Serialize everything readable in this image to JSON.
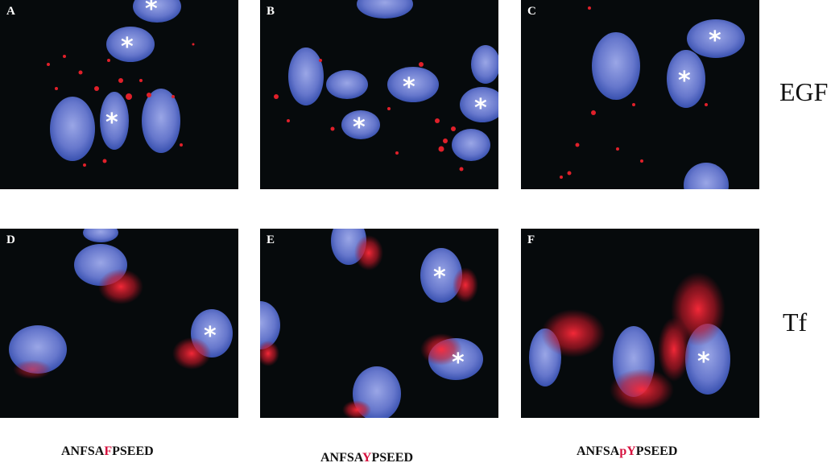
{
  "panels": [
    {
      "label": "A"
    },
    {
      "label": "B"
    },
    {
      "label": "C"
    },
    {
      "label": "D"
    },
    {
      "label": "E"
    },
    {
      "label": "F"
    }
  ],
  "rows": [
    {
      "label": "EGF"
    },
    {
      "label": "Tf"
    }
  ],
  "sequences": [
    {
      "pre": "ANFSA",
      "mid": "F",
      "post": "PSEED"
    },
    {
      "pre": "ANFSA",
      "mid": "Y",
      "post": "PSEED"
    },
    {
      "pre": "ANFSA",
      "mid": "pY",
      "post": "PSEED"
    }
  ],
  "colors": {
    "nucleus": "#3a56b8",
    "nucleus_light": "#8f9ce0",
    "vesicle": "#e0202a",
    "background": "#060a0c",
    "highlight": "#d6133f"
  },
  "marker": "*"
}
